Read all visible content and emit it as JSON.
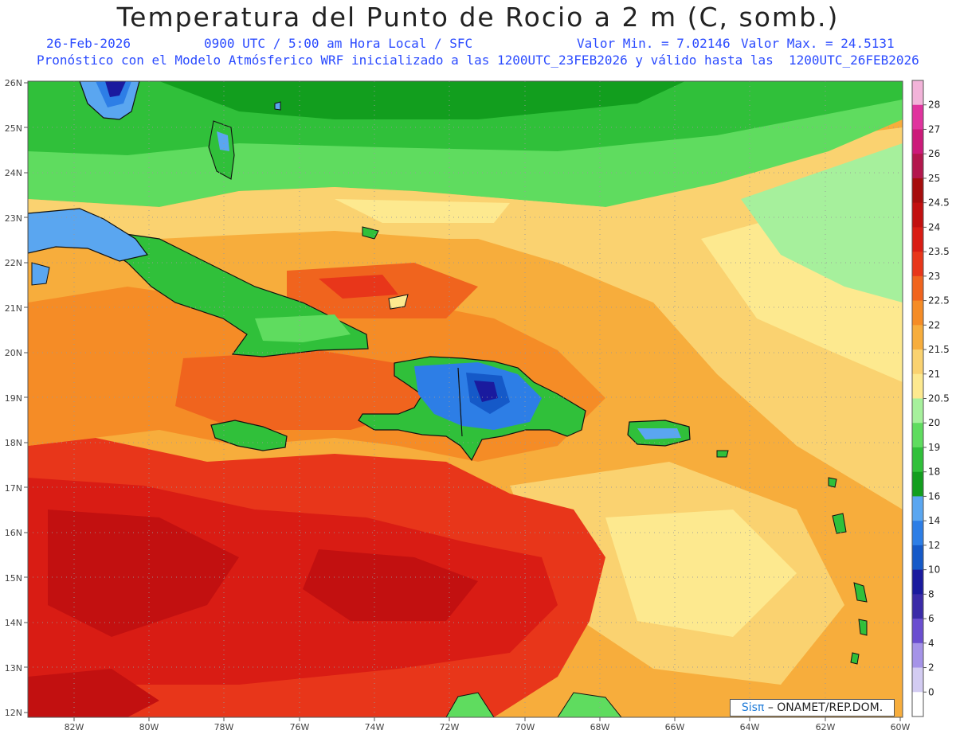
{
  "header": {
    "title": "Temperatura del Punto de Rocio a 2 m (C, somb.)",
    "date": "26-Feb-2026",
    "time": "0900 UTC / 5:00 am Hora Local / SFC",
    "min": "Valor Min. = 7.02146",
    "max": "Valor Max. = 24.5131",
    "model": "Pronóstico con el Modelo Atmósferico WRF inicializado a las 1200UTC_23FEB2026 y válido hasta las  1200UTC_26FEB2026"
  },
  "axes": {
    "lat_labels": [
      "26N",
      "25N",
      "24N",
      "23N",
      "22N",
      "21N",
      "20N",
      "19N",
      "18N",
      "17N",
      "16N",
      "15N",
      "14N",
      "13N",
      "12N"
    ],
    "lon_labels": [
      "82W",
      "80W",
      "78W",
      "76W",
      "74W",
      "72W",
      "70W",
      "68W",
      "66W",
      "64W",
      "62W",
      "60W"
    ]
  },
  "colorbar": {
    "labels": [
      "28",
      "27",
      "26",
      "25",
      "24.5",
      "24",
      "23.5",
      "23",
      "22.5",
      "22",
      "21.5",
      "21",
      "20.5",
      "20",
      "19",
      "18",
      "16",
      "14",
      "12",
      "10",
      "8",
      "6",
      "4",
      "2",
      "0"
    ],
    "colors": [
      "#f2b3d9",
      "#e0339e",
      "#cc1a7a",
      "#b3174d",
      "#a60d0d",
      "#c21010",
      "#d91c14",
      "#e8361a",
      "#f0641e",
      "#f58c26",
      "#f7ad3c",
      "#fad270",
      "#fde98f",
      "#a6f09c",
      "#5fdc5f",
      "#30c03a",
      "#129e1e",
      "#5aa6f0",
      "#2d7ee6",
      "#1559c8",
      "#1a1a9e",
      "#3a2aa8",
      "#6a4ed0",
      "#a593e8",
      "#d3ccf2",
      "#ffffff"
    ]
  },
  "credit": {
    "brand": "Sisπ",
    "text": "– ONAMET/REP.DOM."
  }
}
